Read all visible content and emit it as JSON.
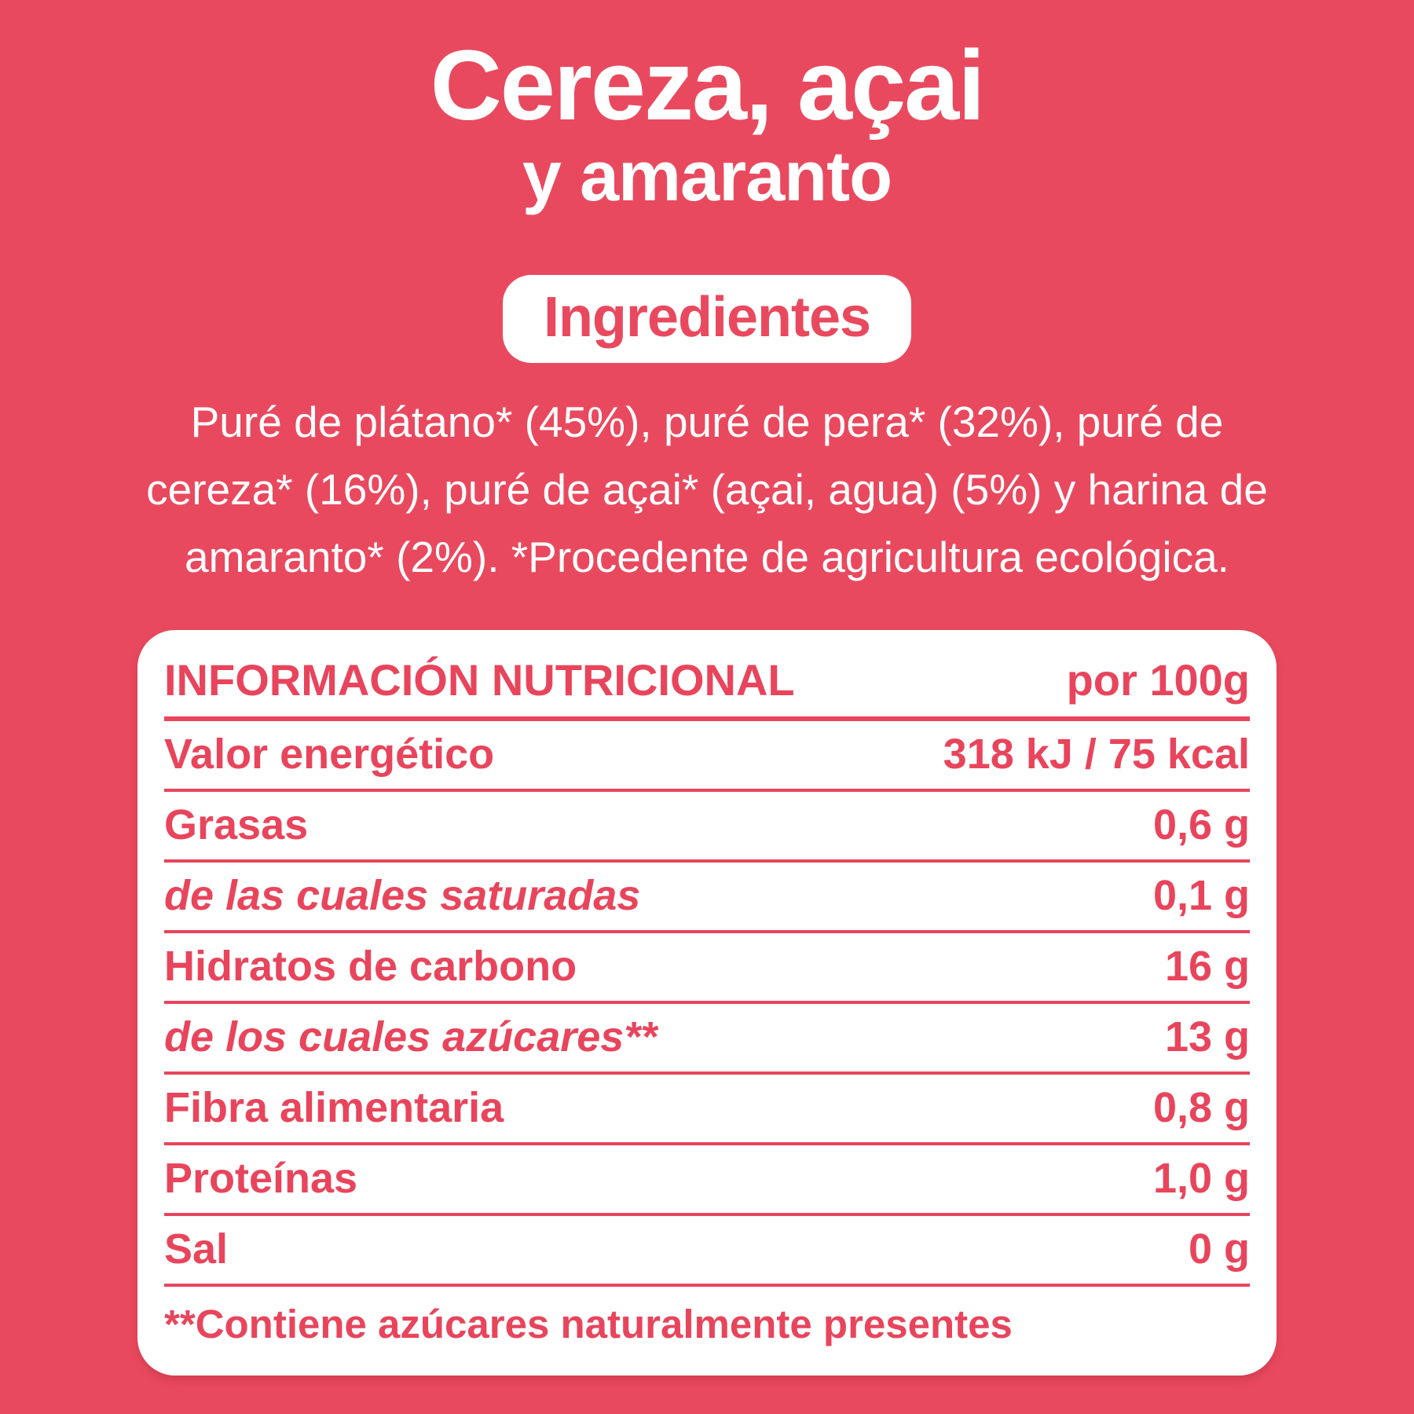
{
  "colors": {
    "background": "#E9495E",
    "accent": "#E8455C",
    "card_bg": "#FFFFFF",
    "text_on_bg": "#FFFFFF"
  },
  "title": {
    "line1": "Cereza, açai",
    "line2": "y amaranto"
  },
  "badge": {
    "label": "Ingredientes"
  },
  "ingredients": {
    "full_text": "Puré de plátano* (45%), puré de pera* (32%), puré de cereza* (16%), puré de açai* (açai, agua) (5%) y harina de amaranto* (2%). *Procedente de agricultura ecológica.",
    "lines": [
      "Puré de plátano* (45%), puré de pera* (32%), puré de",
      "cereza* (16%), puré de açai* (açai, agua) (5%) y harina de",
      "amaranto* (2%). *Procedente de agricultura ecológica."
    ]
  },
  "nutrition": {
    "header": {
      "title": "INFORMACIÓN NUTRICIONAL",
      "per": "por 100g"
    },
    "rows": [
      {
        "label": "Valor energético",
        "value": "318 kJ / 75 kcal",
        "italic": false
      },
      {
        "label": "Grasas",
        "value": "0,6 g",
        "italic": false
      },
      {
        "label": "de las cuales saturadas",
        "value": "0,1 g",
        "italic": true
      },
      {
        "label": "Hidratos de carbono",
        "value": "16 g",
        "italic": false
      },
      {
        "label": "de los cuales azúcares**",
        "value": "13 g",
        "italic": true
      },
      {
        "label": "Fibra alimentaria",
        "value": "0,8 g",
        "italic": false
      },
      {
        "label": "Proteínas",
        "value": "1,0 g",
        "italic": false
      },
      {
        "label": "Sal",
        "value": "0 g",
        "italic": false
      }
    ],
    "footnote": "**Contiene azúcares naturalmente presentes"
  }
}
